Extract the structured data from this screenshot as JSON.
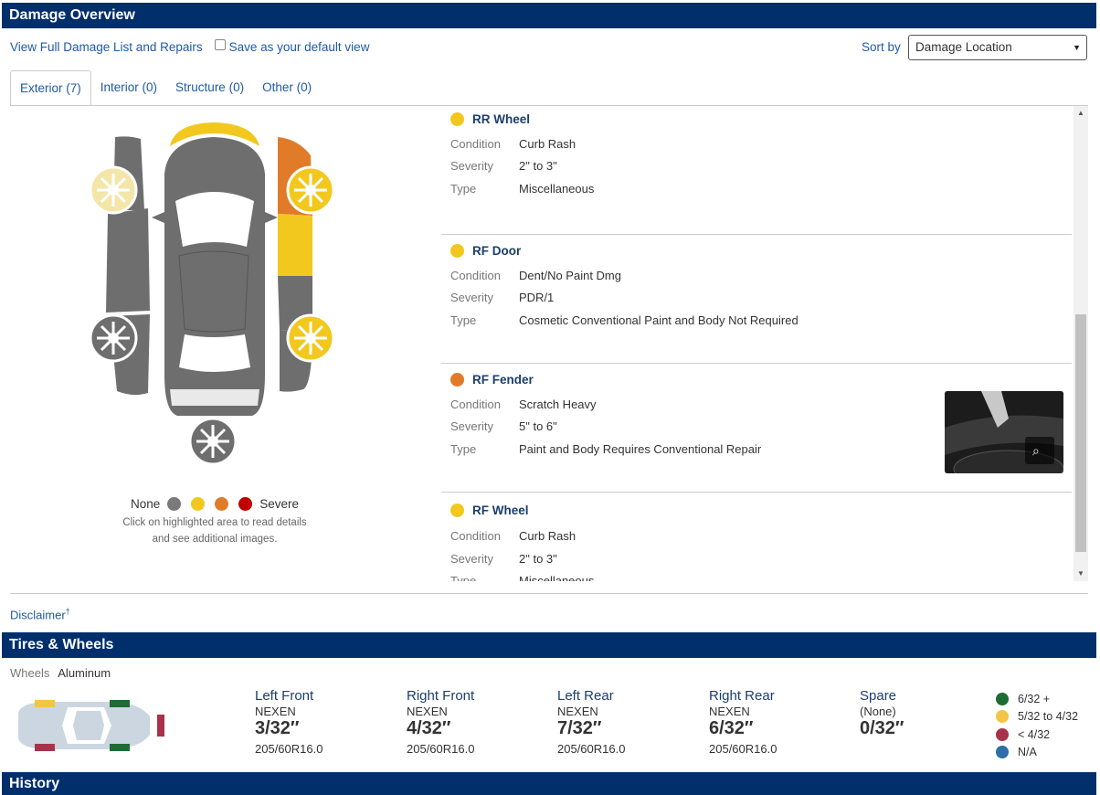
{
  "damage_overview": {
    "title": "Damage Overview",
    "view_full_link": "View Full Damage List and Repairs",
    "save_default_label": "Save as your default view",
    "sort_by_label": "Sort by",
    "sort_value": "Damage Location"
  },
  "tabs": [
    {
      "label": "Exterior (7)",
      "active": true
    },
    {
      "label": "Interior (0)",
      "active": false
    },
    {
      "label": "Structure (0)",
      "active": false
    },
    {
      "label": "Other (0)",
      "active": false
    }
  ],
  "legend": {
    "none_label": "None",
    "severe_label": "Severe",
    "colors": [
      "#7a7a7a",
      "#f2c81e",
      "#e07b2a",
      "#c00000"
    ],
    "note_line1": "Click on highlighted area to read details",
    "note_line2": "and see additional images."
  },
  "damage_items": [
    {
      "title": "RR Wheel",
      "color": "#f2c81e",
      "condition_label": "Condition",
      "condition": "Curb Rash",
      "severity_label": "Severity",
      "severity": "2\" to 3\"",
      "type_label": "Type",
      "type": "Miscellaneous",
      "has_image": false
    },
    {
      "title": "RF Door",
      "color": "#f2c81e",
      "condition_label": "Condition",
      "condition": "Dent/No Paint Dmg",
      "severity_label": "Severity",
      "severity": "PDR/1",
      "type_label": "Type",
      "type": "Cosmetic Conventional Paint and Body Not Required",
      "has_image": false
    },
    {
      "title": "RF Fender",
      "color": "#e07b2a",
      "condition_label": "Condition",
      "condition": "Scratch Heavy",
      "severity_label": "Severity",
      "severity": "5\" to 6\"",
      "type_label": "Type",
      "type": "Paint and Body Requires Conventional Repair",
      "has_image": true
    },
    {
      "title": "RF Wheel",
      "color": "#f2c81e",
      "condition_label": "Condition",
      "condition": "Curb Rash",
      "severity_label": "Severity",
      "severity": "2\" to 3\"",
      "type_label": "Type",
      "type": "Miscellaneous",
      "has_image": false
    }
  ],
  "disclaimer": {
    "label": "Disclaimer",
    "mark": "†"
  },
  "tires_wheels": {
    "title": "Tires & Wheels",
    "wheels_label": "Wheels",
    "wheels_value": "Aluminum",
    "tires": [
      {
        "name": "Left Front",
        "brand": "NEXEN",
        "depth": "3/32″",
        "size": "205/60R16.0"
      },
      {
        "name": "Right Front",
        "brand": "NEXEN",
        "depth": "4/32″",
        "size": "205/60R16.0"
      },
      {
        "name": "Left Rear",
        "brand": "NEXEN",
        "depth": "7/32″",
        "size": "205/60R16.0"
      },
      {
        "name": "Right Rear",
        "brand": "NEXEN",
        "depth": "6/32″",
        "size": "205/60R16.0"
      },
      {
        "name": "Spare",
        "brand": "(None)",
        "depth": "0/32″",
        "size": ""
      }
    ],
    "tread_legend": [
      {
        "label": "6/32 +",
        "color": "#1e6b34"
      },
      {
        "label": "5/32 to 4/32",
        "color": "#f2c544"
      },
      {
        "label": "< 4/32",
        "color": "#a8324a"
      },
      {
        "label": "N/A",
        "color": "#2f6ea8"
      }
    ]
  },
  "history": {
    "title": "History"
  }
}
